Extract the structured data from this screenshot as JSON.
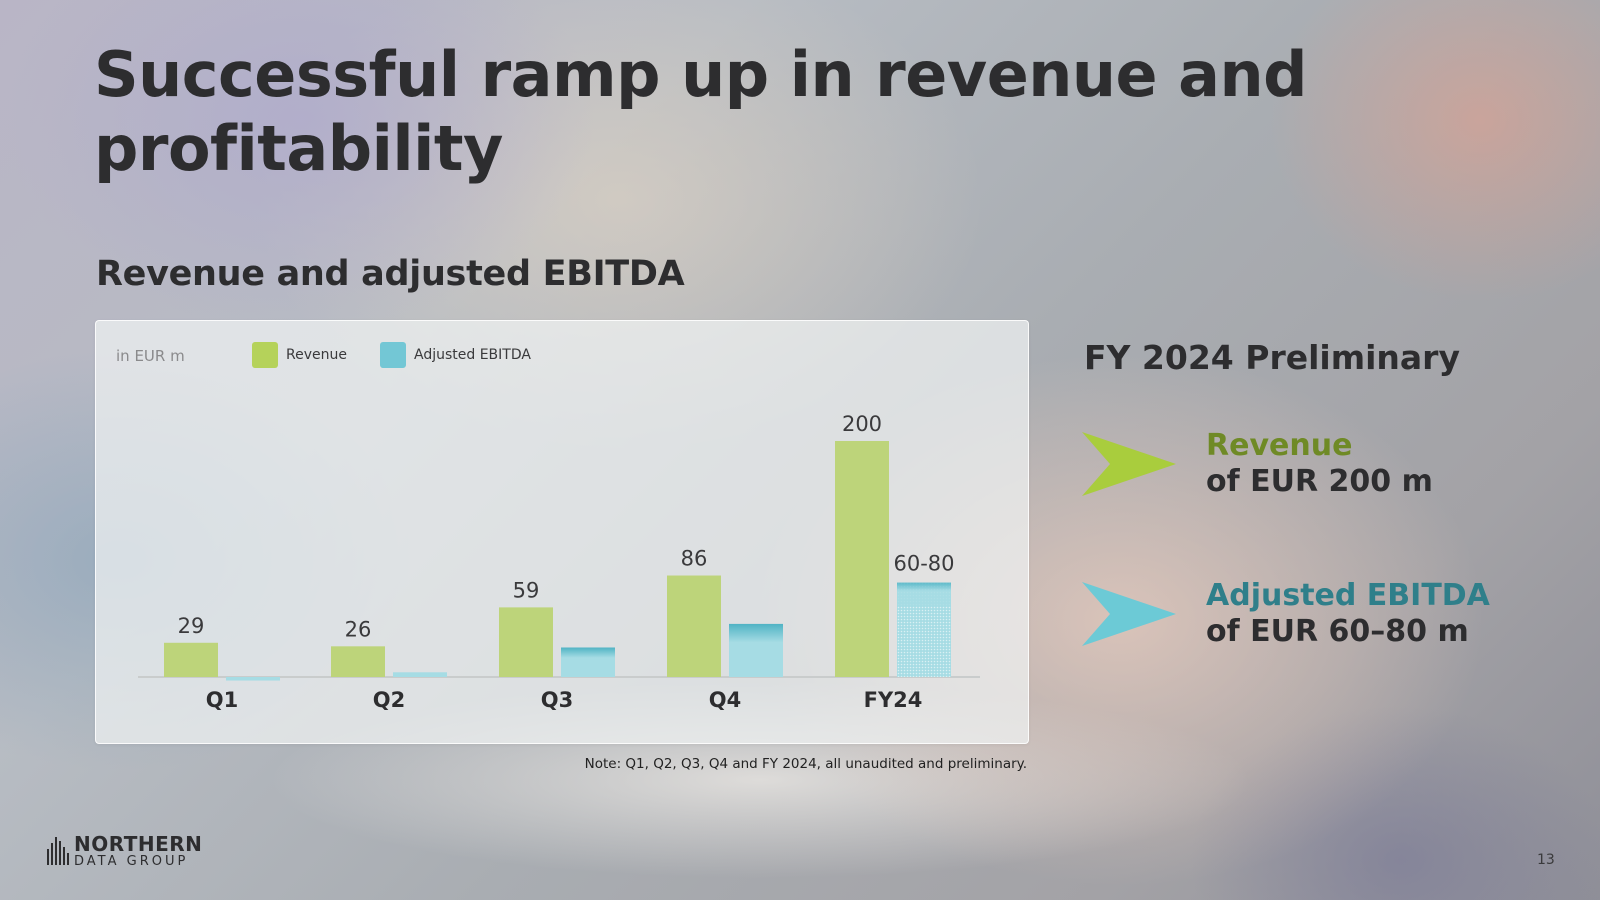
{
  "slide": {
    "title": "Successful ramp up in revenue and profitability",
    "subtitle": "Revenue and adjusted EBITDA",
    "note": "Note: Q1, Q2, Q3, Q4 and FY 2024, all unaudited and preliminary.",
    "page_number": "13"
  },
  "chart_data": {
    "type": "bar",
    "unit_label": "in EUR m",
    "categories": [
      "Q1",
      "Q2",
      "Q3",
      "Q4",
      "FY24"
    ],
    "series": [
      {
        "name": "Revenue",
        "color": "#bdd47a",
        "values": [
          29,
          26,
          59,
          86,
          200
        ],
        "labels": [
          "29",
          "26",
          "59",
          "86",
          "200"
        ]
      },
      {
        "name": "Adjusted EBITDA",
        "color": "#a6dce4",
        "values": [
          -3,
          4,
          25,
          45,
          80
        ],
        "labels": [
          "",
          "",
          "",
          "",
          "60-80"
        ],
        "range_low": [
          null,
          null,
          null,
          null,
          60
        ]
      }
    ],
    "ylim": [
      -5,
      210
    ]
  },
  "kpis": {
    "title": "FY 2024 Preliminary",
    "items": [
      {
        "label": "Revenue",
        "value": "of EUR 200 m",
        "color": "#6f8a26",
        "chevron_color": "#a9cd3d"
      },
      {
        "label": "Adjusted EBITDA",
        "value": "of EUR 60–80 m",
        "color": "#2f7f8a",
        "chevron_color": "#6ccad6"
      }
    ]
  },
  "logo": {
    "line1": "NORTHERN",
    "line2": "DATA GROUP"
  }
}
